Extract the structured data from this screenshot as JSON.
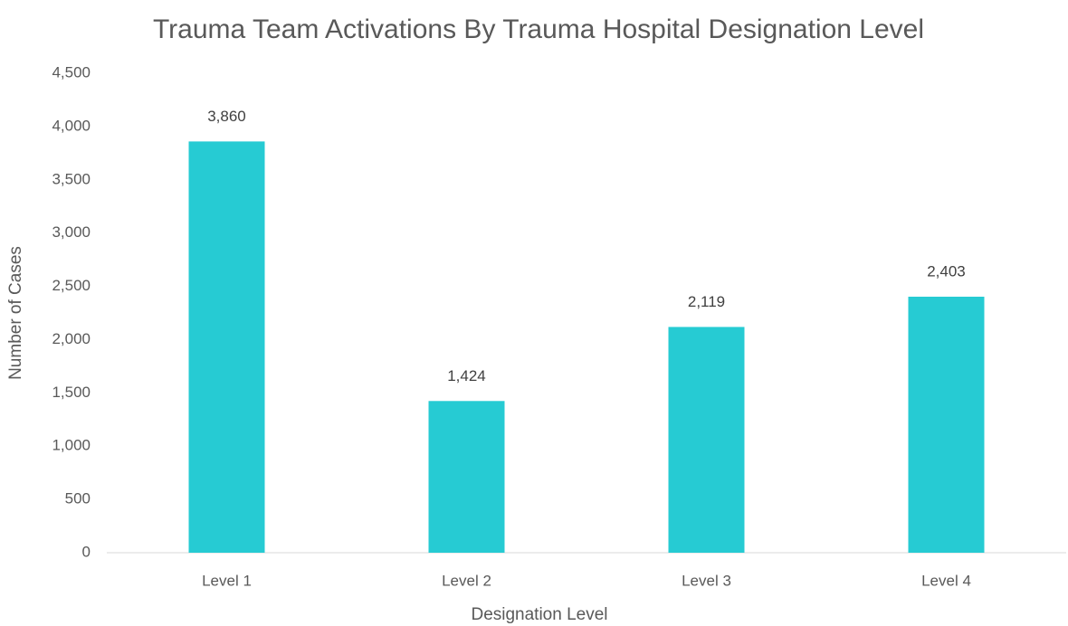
{
  "chart_data": {
    "type": "bar",
    "title": "Trauma Team Activations By Trauma Hospital Designation Level",
    "x_label": "Designation Level",
    "y_label": "Number of Cases",
    "categories": [
      "Level 1",
      "Level 2",
      "Level 3",
      "Level 4"
    ],
    "values": [
      3860,
      1424,
      2119,
      2403
    ],
    "value_labels": [
      "3,860",
      "1,424",
      "2,119",
      "2,403"
    ],
    "color": "#26cbd3",
    "ylim": [
      0,
      4500
    ],
    "yticks": [
      0,
      500,
      {
        "value": 1000,
        "label": "1,000"
      },
      {
        "value": 1500,
        "label": "1,500"
      },
      {
        "value": 2000,
        "label": "2,000"
      },
      {
        "value": 2500,
        "label": "2,500"
      },
      {
        "value": 3000,
        "label": "3,000"
      },
      {
        "value": 3500,
        "label": "3,500"
      },
      {
        "value": 4000,
        "label": "4,000"
      },
      {
        "value": 4500,
        "label": "4,500"
      }
    ],
    "grid": false
  }
}
